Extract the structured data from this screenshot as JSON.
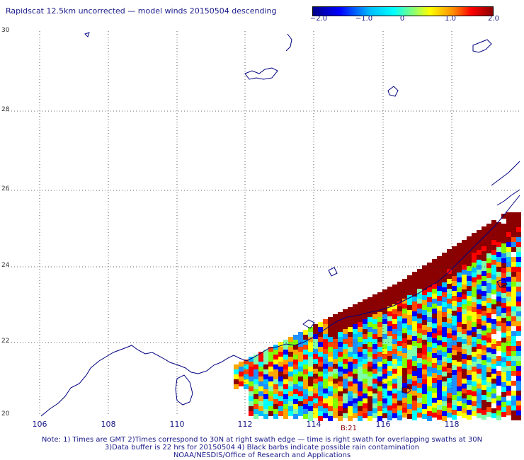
{
  "title": "Rapidscat 12.5km uncorrected — model winds 20150504 descending",
  "colorbar": {
    "ticks": [
      "−2.0",
      "−1.0",
      "0",
      "1.0",
      "2.0"
    ],
    "tick_values": [
      -2.0,
      -1.0,
      0,
      1.0,
      2.0
    ],
    "range": [
      -2.0,
      2.0
    ],
    "colors": [
      "#00008b",
      "#0000ff",
      "#00bfff",
      "#00ffff",
      "#7fff7f",
      "#ffff00",
      "#ff8c00",
      "#ff0000",
      "#8b0000"
    ]
  },
  "map": {
    "lon_range": [
      105,
      120
    ],
    "lat_range": [
      20,
      30
    ],
    "lat_labels": [
      "30",
      "28",
      "26",
      "24",
      "22",
      "20"
    ],
    "lon_labels": [
      "106",
      "108",
      "110",
      "112",
      "114",
      "116",
      "118"
    ],
    "coastline_color": "#000080",
    "gridlines": "dotted"
  },
  "time_label": "B:21",
  "notes": [
    "Note: 1) Times are GMT 2)Times correspond to 30N at right swath edge — time is right swath for overlapping swaths at 30N",
    "3)Data buffer is 22 hrs for 20150504 4) Black barbs indicate possible rain contamination",
    "NOAA/NESDIS/Office of Research and Applications"
  ]
}
